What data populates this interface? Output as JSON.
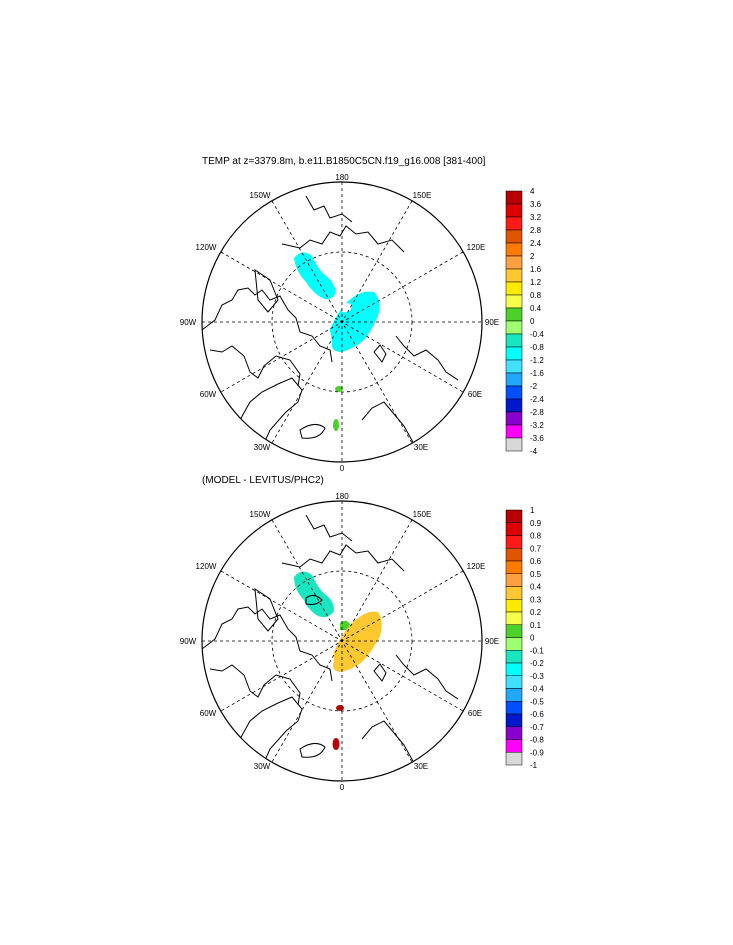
{
  "top_panel": {
    "title": "TEMP at z=3379.8m, b.e11.B1850C5CN.f19_g16.008 [381-400]",
    "lon_labels": {
      "n180": "180",
      "n150w": "150W",
      "n150e": "150E",
      "n120w": "120W",
      "n120e": "120E",
      "n90w": "90W",
      "n90e": "90E",
      "n60w": "60W",
      "n60e": "60E",
      "n30w": "30W",
      "n30e": "30E",
      "n0": "0"
    },
    "colorbar": {
      "labels": [
        "4",
        "3.6",
        "3.2",
        "2.8",
        "2.4",
        "2",
        "1.6",
        "1.2",
        "0.8",
        "0.4",
        "0",
        "-0.4",
        "-0.8",
        "-1.2",
        "-1.6",
        "-2",
        "-2.4",
        "-2.8",
        "-3.2",
        "-3.6",
        "-4"
      ],
      "colors": [
        "#b80000",
        "#dd0000",
        "#ff1a1a",
        "#e05500",
        "#ff7a00",
        "#ffa040",
        "#ffc830",
        "#ffea00",
        "#f6ff4a",
        "#4bd12a",
        "#a0ff70",
        "#19e6c0",
        "#00ffff",
        "#40e0ff",
        "#20a8ff",
        "#0050ff",
        "#0018cc",
        "#8a00d0",
        "#ff00ff",
        "#d8d8d8",
        "#6e6e6e"
      ]
    }
  },
  "bottom_panel": {
    "title": "(MODEL - LEVITUS/PHC2)",
    "lon_labels": {
      "n180": "180",
      "n150w": "150W",
      "n150e": "150E",
      "n120w": "120W",
      "n120e": "120E",
      "n90w": "90W",
      "n90e": "90E",
      "n60w": "60W",
      "n60e": "60E",
      "n30w": "30W",
      "n30e": "30E",
      "n0": "0"
    },
    "colorbar": {
      "labels": [
        "1",
        "0.9",
        "0.8",
        "0.7",
        "0.6",
        "0.5",
        "0.4",
        "0.3",
        "0.2",
        "0.1",
        "0",
        "-0.1",
        "-0.2",
        "-0.3",
        "-0.4",
        "-0.5",
        "-0.6",
        "-0.7",
        "-0.8",
        "-0.9",
        "-1"
      ],
      "colors": [
        "#b80000",
        "#dd0000",
        "#ff1a1a",
        "#e05500",
        "#ff7a00",
        "#ffa040",
        "#ffc830",
        "#ffea00",
        "#f6ff4a",
        "#4bd12a",
        "#a0ff70",
        "#19e6c0",
        "#00ffff",
        "#40e0ff",
        "#20a8ff",
        "#0050ff",
        "#0018cc",
        "#8a00d0",
        "#ff00ff",
        "#d8d8d8",
        "#6e6e6e"
      ]
    }
  }
}
